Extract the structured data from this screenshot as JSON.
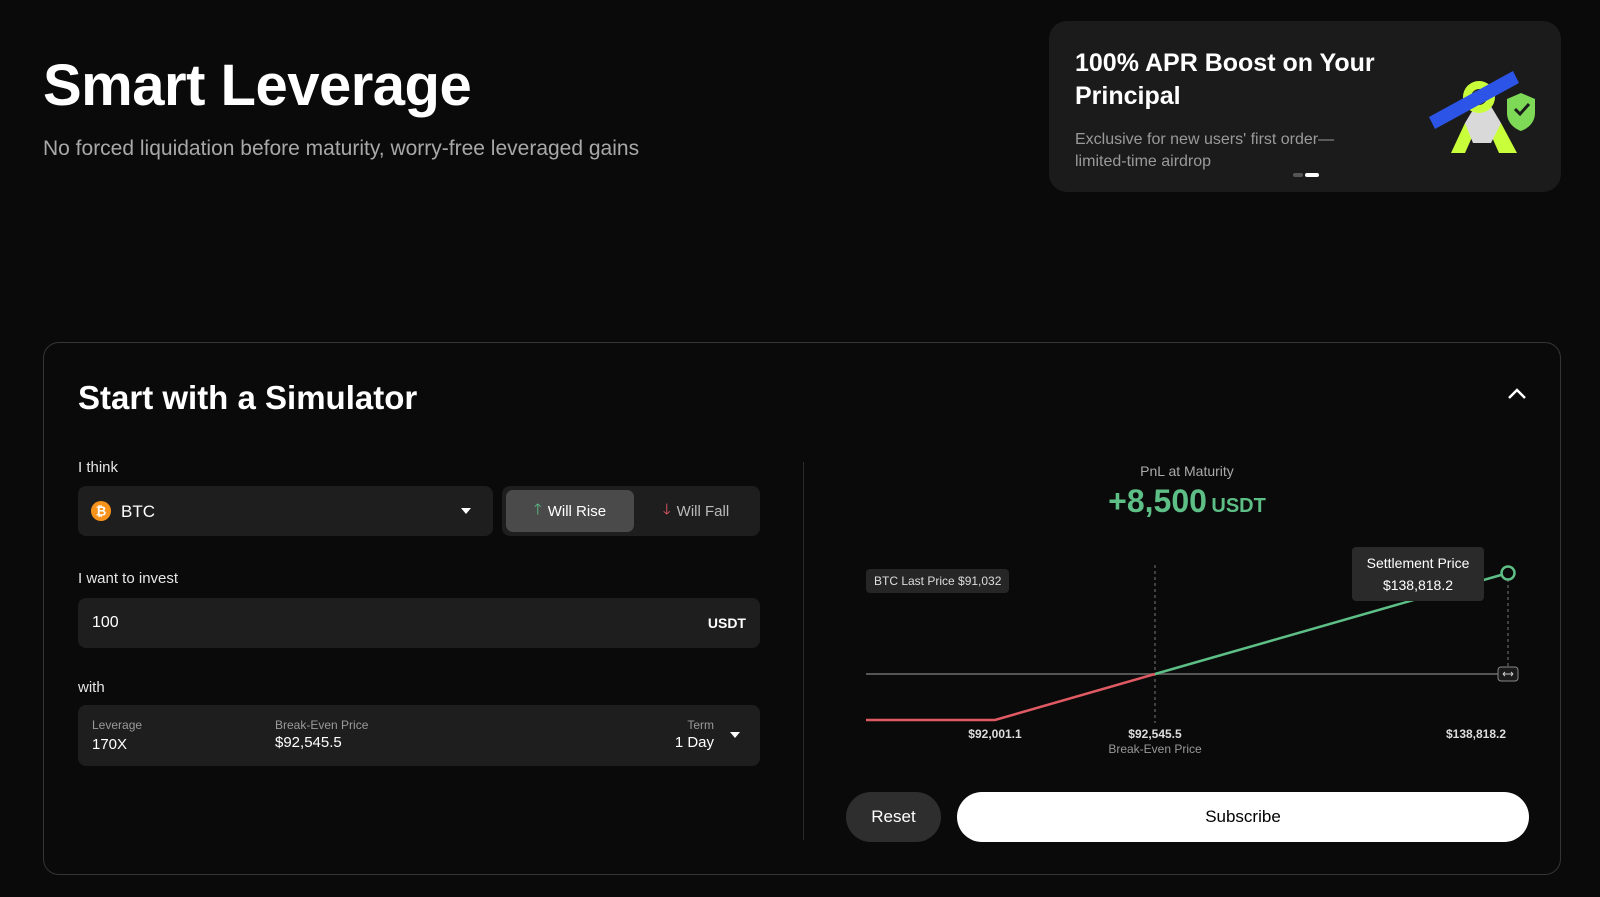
{
  "header": {
    "title": "Smart Leverage",
    "subtitle": "No forced liquidation before maturity, worry-free leveraged gains"
  },
  "promo": {
    "title": "100% APR Boost on Your Principal",
    "text": "Exclusive for new users' first order—limited-time airdrop"
  },
  "simulator": {
    "title": "Start with a Simulator",
    "think_label": "I think",
    "asset": "BTC",
    "rise": "Will Rise",
    "fall": "Will Fall",
    "invest_label": "I want to invest",
    "amount": "100",
    "unit": "USDT",
    "with_label": "with",
    "leverage_label": "Leverage",
    "leverage": "170X",
    "breakeven_label": "Break-Even Price",
    "breakeven": "$92,545.5",
    "term_label": "Term",
    "term": "1 Day"
  },
  "pnl": {
    "label": "PnL at Maturity",
    "value": "+8,500",
    "unit": "USDT",
    "last_price": "BTC Last Price $91,032",
    "settlement_label": "Settlement Price",
    "settlement": "$138,818.2",
    "start_price": "$92,001.1"
  },
  "buttons": {
    "reset": "Reset",
    "subscribe": "Subscribe"
  }
}
